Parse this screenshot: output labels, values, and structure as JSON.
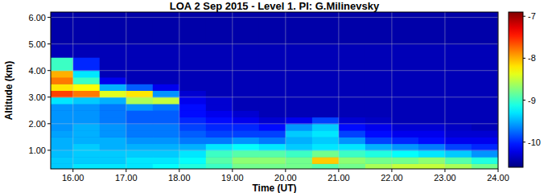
{
  "chart_data": {
    "type": "heatmap",
    "title": "LOA   2 Sep 2015 - Level 1. PI: G.Milinevsky",
    "x_label": "Time (UT)",
    "y_label": "Altitude (km)",
    "xlim": [
      15.58,
      24
    ],
    "ylim": [
      0.3,
      6.2
    ],
    "xticks": [
      {
        "value": 16,
        "label": "16.00"
      },
      {
        "value": 17,
        "label": "17.00"
      },
      {
        "value": 18,
        "label": "18.00"
      },
      {
        "value": 19,
        "label": "19.00"
      },
      {
        "value": 20,
        "label": "20.00"
      },
      {
        "value": 21,
        "label": "21.00"
      },
      {
        "value": 22,
        "label": "22.00"
      },
      {
        "value": 23,
        "label": "23.00"
      },
      {
        "value": 24,
        "label": "24.00"
      }
    ],
    "yticks": [
      {
        "value": 1,
        "label": "1.00"
      },
      {
        "value": 2,
        "label": "2.00"
      },
      {
        "value": 3,
        "label": "3.00"
      },
      {
        "value": 4,
        "label": "4.00"
      },
      {
        "value": 5,
        "label": "5.00"
      },
      {
        "value": 6,
        "label": "6.00"
      }
    ],
    "grid": true,
    "x_edges": [
      15.58,
      16,
      16.5,
      17,
      17.5,
      18,
      18.5,
      19,
      19.5,
      20,
      20.5,
      21,
      21.5,
      22,
      22.5,
      23,
      23.5,
      24
    ],
    "y_edges": [
      0.3,
      0.5,
      0.75,
      1.0,
      1.25,
      1.5,
      1.75,
      2.0,
      2.25,
      2.5,
      2.75,
      3.0,
      3.25,
      3.5,
      3.75,
      4.0,
      4.5,
      5.0,
      6.2
    ],
    "values": [
      [
        -9.4,
        -9.3,
        -9.3,
        -9.3,
        -9.2,
        -9.1,
        -9.0,
        -8.8,
        -8.8,
        -8.8,
        -8.9,
        -8.8,
        -8.6,
        -8.5,
        -8.5,
        -8.6,
        -8.8
      ],
      [
        -9.4,
        -9.4,
        -9.4,
        -9.3,
        -9.3,
        -9.2,
        -8.9,
        -8.7,
        -8.7,
        -8.8,
        -8.1,
        -8.7,
        -8.8,
        -8.8,
        -8.7,
        -8.9,
        -9.1
      ],
      [
        -9.45,
        -9.4,
        -9.4,
        -9.4,
        -9.4,
        -9.3,
        -9.0,
        -8.9,
        -8.9,
        -9.0,
        -8.8,
        -9.0,
        -9.1,
        -9.2,
        -9.3,
        -9.4,
        -9.6
      ],
      [
        -9.5,
        -9.4,
        -9.5,
        -9.5,
        -9.5,
        -9.5,
        -9.3,
        -9.2,
        -9.3,
        -9.4,
        -9.3,
        -9.3,
        -9.5,
        -9.6,
        -9.7,
        -9.9,
        -10.0
      ],
      [
        -9.5,
        -9.5,
        -9.5,
        -9.6,
        -9.6,
        -9.7,
        -9.7,
        -9.6,
        -9.7,
        -9.5,
        -9.4,
        -9.6,
        -9.9,
        -10.0,
        -10.1,
        -10.2,
        -10.2
      ],
      [
        -9.55,
        -9.5,
        -9.6,
        -9.7,
        -9.7,
        -9.8,
        -9.9,
        -9.9,
        -9.9,
        -9.4,
        -9.3,
        -9.9,
        -10.1,
        -10.2,
        -10.2,
        -10.3,
        -10.3
      ],
      [
        -9.6,
        -9.5,
        -9.6,
        -9.7,
        -9.7,
        -9.9,
        -10.0,
        -10.0,
        -10.1,
        -9.6,
        -9.4,
        -10.1,
        -10.2,
        -10.3,
        -10.3,
        -10.35,
        -10.4
      ],
      [
        -9.6,
        -9.6,
        -9.7,
        -9.8,
        -9.8,
        -10.0,
        -10.1,
        -10.2,
        -10.3,
        -10.2,
        -9.9,
        -10.3,
        -10.35,
        -10.4,
        -10.4,
        -10.4,
        -10.4
      ],
      [
        -9.6,
        -9.6,
        -9.7,
        -9.8,
        -9.8,
        -10.1,
        -10.2,
        -10.3,
        -10.4,
        -10.4,
        -10.4,
        -10.4,
        -10.4,
        -10.4,
        -10.4,
        -10.4,
        -10.4
      ],
      [
        -9.6,
        -9.6,
        -9.7,
        -9.6,
        -9.7,
        -10.1,
        -10.3,
        -10.4,
        -10.4,
        -10.4,
        -10.4,
        -10.4,
        -10.4,
        -10.4,
        -10.4,
        -10.4,
        -10.4
      ],
      [
        -9.3,
        -9.4,
        -9.5,
        -8.6,
        -8.5,
        -10.2,
        -10.3,
        -10.4,
        -10.4,
        -10.4,
        -10.4,
        -10.4,
        -10.4,
        -10.4,
        -10.4,
        -10.4,
        -10.4
      ],
      [
        -7.6,
        -7.8,
        -8.4,
        -8.2,
        -9.6,
        -10.3,
        -10.4,
        -10.4,
        -10.4,
        -10.4,
        -10.4,
        -10.4,
        -10.4,
        -10.4,
        -10.4,
        -10.4,
        -10.4
      ],
      [
        -8.2,
        -8.3,
        -9.5,
        -9.8,
        -10.2,
        -10.4,
        -10.4,
        -10.4,
        -10.4,
        -10.4,
        -10.4,
        -10.4,
        -10.4,
        -10.4,
        -10.4,
        -10.4,
        -10.4
      ],
      [
        -7.8,
        -9.0,
        -10.2,
        -10.4,
        -10.4,
        -10.4,
        -10.4,
        -10.4,
        -10.4,
        -10.4,
        -10.4,
        -10.4,
        -10.4,
        -10.4,
        -10.4,
        -10.4,
        -10.4
      ],
      [
        -8.0,
        -9.3,
        -10.4,
        -10.4,
        -10.4,
        -10.4,
        -10.4,
        -10.4,
        -10.4,
        -10.4,
        -10.4,
        -10.4,
        -10.4,
        -10.4,
        -10.4,
        -10.4,
        -10.4
      ],
      [
        -9.0,
        -10.0,
        -10.4,
        -10.4,
        -10.4,
        -10.4,
        -10.4,
        -10.4,
        -10.4,
        -10.4,
        -10.4,
        -10.4,
        -10.4,
        -10.4,
        -10.4,
        -10.4,
        -10.4
      ],
      [
        -10.4,
        -10.4,
        -10.4,
        -10.4,
        -10.4,
        -10.4,
        -10.4,
        -10.4,
        -10.4,
        -10.4,
        -10.4,
        -10.4,
        -10.4,
        -10.4,
        -10.4,
        -10.4,
        -10.4
      ],
      [
        -10.45,
        -10.45,
        -10.45,
        -10.45,
        -10.45,
        -10.45,
        -10.45,
        -10.45,
        -10.45,
        -10.45,
        -10.45,
        -10.45,
        -10.45,
        -10.45,
        -10.45,
        -10.45,
        -10.45
      ]
    ],
    "colorbar": {
      "lim": [
        -10.6,
        -6.9
      ],
      "ticks": [
        -7,
        -8,
        -9,
        -10
      ]
    }
  }
}
